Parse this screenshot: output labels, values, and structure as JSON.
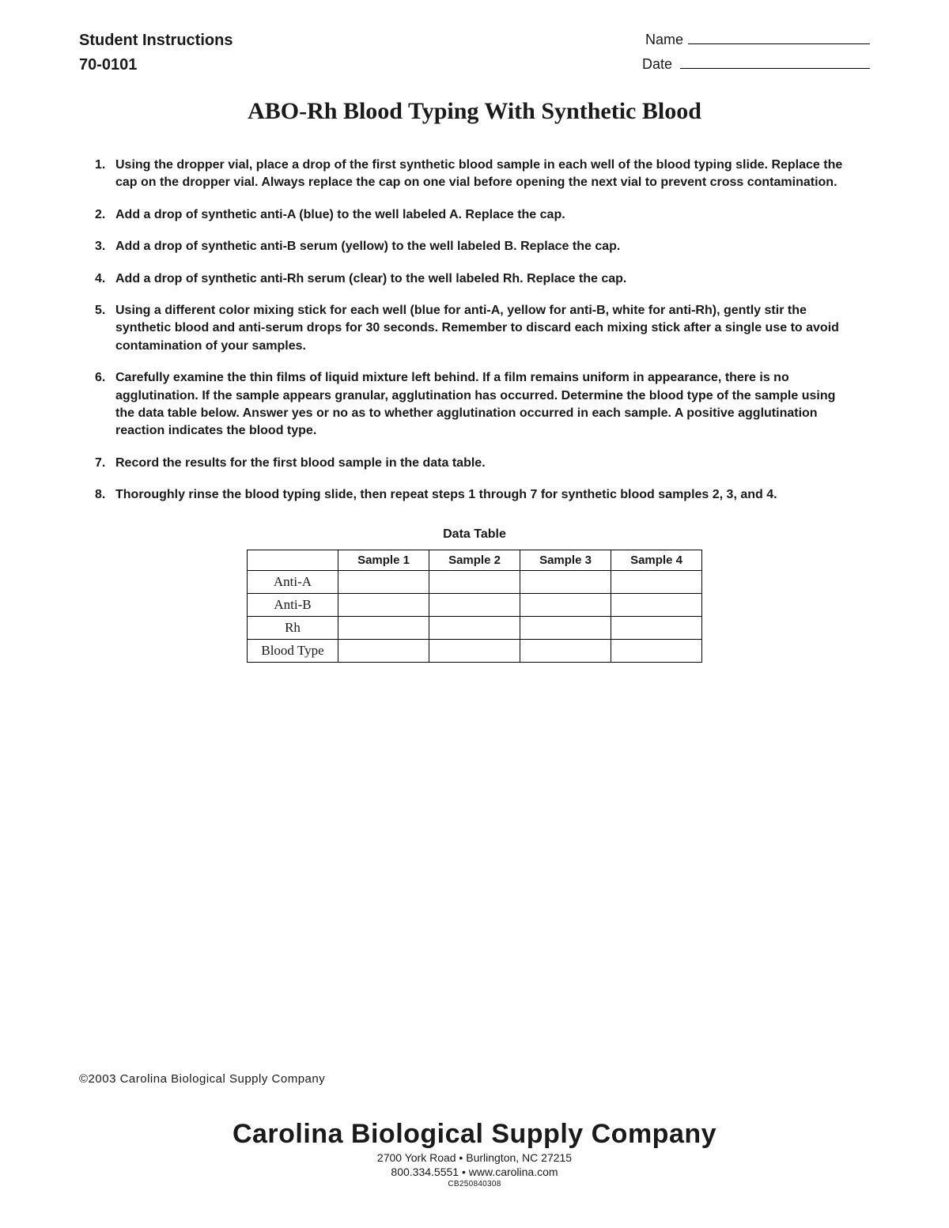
{
  "header": {
    "left": "Student Instructions",
    "code": "70-0101",
    "name_label": "Name",
    "date_label": "Date"
  },
  "title": "ABO-Rh Blood Typing With Synthetic Blood",
  "instructions": [
    "Using the dropper vial, place a drop of the first synthetic blood sample in each well of the blood typing slide. Replace the cap on the dropper vial. Always replace the cap on one vial before opening the next vial to prevent cross contamination.",
    "Add a drop of synthetic anti-A (blue) to the well labeled A. Replace the cap.",
    "Add a drop of synthetic anti-B serum (yellow) to the well labeled B. Replace the cap.",
    "Add a drop of synthetic anti-Rh serum (clear) to the well labeled Rh. Replace the cap.",
    "Using a different color mixing stick for each well (blue for anti-A, yellow for anti-B, white for anti-Rh), gently stir the synthetic blood and anti-serum drops for 30 seconds. Remember to discard each mixing stick after a single use to avoid contamination of your samples.",
    "Carefully examine the thin films of liquid mixture left behind. If a film remains uniform in appearance, there is no agglutination. If the sample appears granular, agglutination has occurred. Determine the blood type of the sample using the data table below. Answer yes or no as to whether agglutination occurred in each sample. A positive agglutination reaction indicates the blood type.",
    "Record the results for the first blood sample in the data table.",
    "Thoroughly rinse the blood typing slide, then repeat steps 1 through 7 for synthetic blood samples 2, 3, and 4."
  ],
  "table": {
    "title": "Data Table",
    "columns": [
      "",
      "Sample 1",
      "Sample 2",
      "Sample 3",
      "Sample 4"
    ],
    "rows": [
      [
        "Anti-A",
        "",
        "",
        "",
        ""
      ],
      [
        "Anti-B",
        "",
        "",
        "",
        ""
      ],
      [
        "Rh",
        "",
        "",
        "",
        ""
      ],
      [
        "Blood Type",
        "",
        "",
        "",
        ""
      ]
    ],
    "border_color": "#000000",
    "header_font": "Arial",
    "row_font": "Georgia"
  },
  "copyright": "©2003 Carolina Biological Supply Company",
  "footer": {
    "company": "Carolina Biological Supply Company",
    "address": "2700 York Road • Burlington, NC 27215",
    "contact": "800.334.5551 • www.carolina.com",
    "code": "CB250840308"
  },
  "colors": {
    "background": "#ffffff",
    "text": "#1a1a1a",
    "line": "#000000"
  }
}
